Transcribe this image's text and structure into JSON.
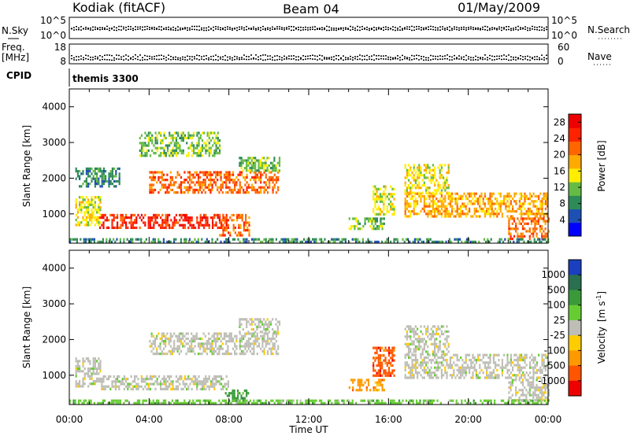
{
  "header": {
    "site": "Kodiak (fitACF)",
    "beam": "Beam 04",
    "date": "01/May/2009"
  },
  "info_panels": {
    "nsky_label": "N.Sky",
    "nsky_ticks": [
      "10^5",
      "10^0"
    ],
    "nsearch_label": "N.Search",
    "nsearch_ticks": [
      "10^5",
      "10^0"
    ],
    "freq_label_line1": "Freq.",
    "freq_label_line2": "[MHz]",
    "freq_ticks": [
      "18",
      "8"
    ],
    "nave_label": "Nave",
    "nave_ticks": [
      "60",
      "0"
    ],
    "cpid_label": "CPID",
    "cpid_value": "themis 3300"
  },
  "colors": {
    "power_scale": [
      "#0000ff",
      "#1e50b4",
      "#2e8b57",
      "#66bb44",
      "#ffee00",
      "#ffaa00",
      "#ff6600",
      "#ff2200",
      "#ee0000"
    ],
    "velocity_scale": [
      "#1a3fbf",
      "#2a6f4f",
      "#3a9a3a",
      "#66cc33",
      "#bebeb6",
      "#ffcc00",
      "#ff9900",
      "#ff5500",
      "#ee0000"
    ]
  },
  "chart_data": [
    {
      "type": "heatmap",
      "panel": "power",
      "ylabel": "Slant Range [km]",
      "xlabel": "Time UT",
      "x_ticks": [
        "00:00",
        "04:00",
        "08:00",
        "12:00",
        "16:00",
        "20:00",
        "00:00"
      ],
      "xlim_hours": [
        0,
        24
      ],
      "y_ticks": [
        1000,
        2000,
        3000,
        4000
      ],
      "ylim_km": [
        180,
        4500
      ],
      "colorbar": {
        "label": "Power [dB]",
        "ticks": [
          4,
          8,
          12,
          16,
          20,
          24,
          28
        ],
        "range": [
          0,
          30
        ]
      },
      "regions": [
        {
          "t": [
            1.5,
            8.0
          ],
          "r": [
            600,
            1000
          ],
          "level": 28
        },
        {
          "t": [
            7.5,
            9.0
          ],
          "r": [
            400,
            1000
          ],
          "level": 24
        },
        {
          "t": [
            0.3,
            1.6
          ],
          "r": [
            700,
            1500
          ],
          "level": 14
        },
        {
          "t": [
            4.0,
            10.5
          ],
          "r": [
            1600,
            2200
          ],
          "level": 22
        },
        {
          "t": [
            8.5,
            10.5
          ],
          "r": [
            2200,
            2600
          ],
          "level": 12
        },
        {
          "t": [
            0.3,
            2.5
          ],
          "r": [
            1800,
            2300
          ],
          "level": 8
        },
        {
          "t": [
            3.5,
            7.5
          ],
          "r": [
            2600,
            3300
          ],
          "level": 12
        },
        {
          "t": [
            14.0,
            15.8
          ],
          "r": [
            600,
            900
          ],
          "level": 10
        },
        {
          "t": [
            15.2,
            16.3
          ],
          "r": [
            1000,
            1800
          ],
          "level": 16
        },
        {
          "t": [
            16.8,
            24.0
          ],
          "r": [
            900,
            1600
          ],
          "level": 20
        },
        {
          "t": [
            16.8,
            19.0
          ],
          "r": [
            1600,
            2400
          ],
          "level": 16
        },
        {
          "t": [
            22.0,
            24.0
          ],
          "r": [
            300,
            900
          ],
          "level": 24
        },
        {
          "t": [
            0.0,
            24.0
          ],
          "r": [
            180,
            320
          ],
          "level": 6
        }
      ]
    },
    {
      "type": "heatmap",
      "panel": "velocity",
      "ylabel": "Slant Range [km]",
      "xlabel": "Time UT",
      "x_ticks": [
        "00:00",
        "04:00",
        "08:00",
        "12:00",
        "16:00",
        "20:00",
        "00:00"
      ],
      "xlim_hours": [
        0,
        24
      ],
      "y_ticks": [
        1000,
        2000,
        3000,
        4000
      ],
      "ylim_km": [
        180,
        4500
      ],
      "colorbar": {
        "label": "Velocity",
        "unit_base": "[m s",
        "unit_exp": "-1",
        "unit_close": "]",
        "ticks": [
          "1000",
          "500",
          "100",
          "25",
          "-25",
          "-100",
          "-500",
          "-1000"
        ]
      },
      "regions": [
        {
          "t": [
            1.5,
            8.0
          ],
          "r": [
            600,
            1000
          ],
          "level": "0"
        },
        {
          "t": [
            0.3,
            1.6
          ],
          "r": [
            700,
            1500
          ],
          "level": "0"
        },
        {
          "t": [
            4.0,
            10.5
          ],
          "r": [
            1600,
            2200
          ],
          "level": "0"
        },
        {
          "t": [
            8.5,
            10.5
          ],
          "r": [
            2200,
            2600
          ],
          "level": "0"
        },
        {
          "t": [
            7.8,
            9.0
          ],
          "r": [
            200,
            600
          ],
          "level": "100"
        },
        {
          "t": [
            14.0,
            15.8
          ],
          "r": [
            600,
            900
          ],
          "level": "-100"
        },
        {
          "t": [
            15.2,
            16.3
          ],
          "r": [
            1000,
            1800
          ],
          "level": "-500"
        },
        {
          "t": [
            16.8,
            24.0
          ],
          "r": [
            900,
            1600
          ],
          "level": "0"
        },
        {
          "t": [
            16.8,
            19.0
          ],
          "r": [
            1600,
            2400
          ],
          "level": "0"
        },
        {
          "t": [
            22.0,
            24.0
          ],
          "r": [
            300,
            900
          ],
          "level": "0"
        },
        {
          "t": [
            0.0,
            24.0
          ],
          "r": [
            180,
            320
          ],
          "level": "25"
        }
      ]
    }
  ]
}
